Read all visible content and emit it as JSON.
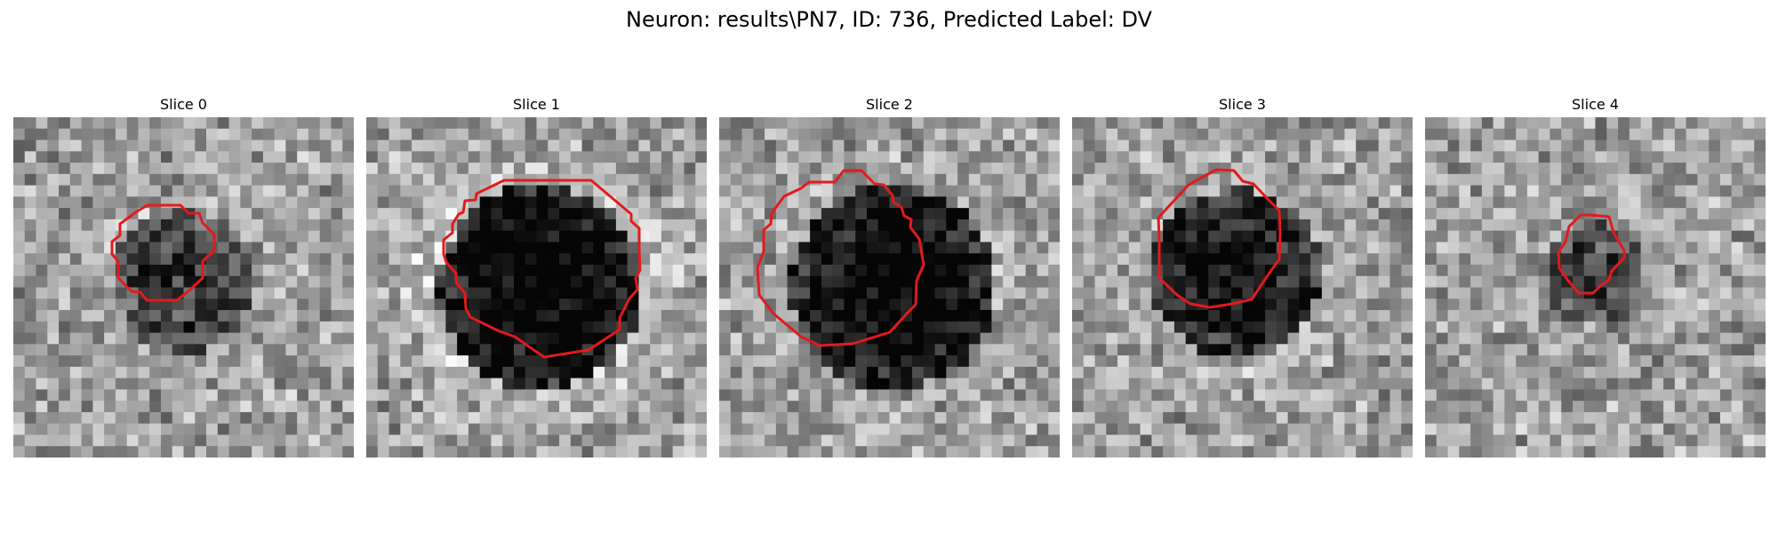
{
  "figure": {
    "title": "Neuron: results\\PN7, ID: 736, Predicted Label: DV",
    "contour_color": "#e31a1c",
    "colormap": "gray",
    "slices": [
      {
        "title": "Slice 0"
      },
      {
        "title": "Slice 1"
      },
      {
        "title": "Slice 2"
      },
      {
        "title": "Slice 3"
      },
      {
        "title": "Slice 4"
      }
    ]
  }
}
